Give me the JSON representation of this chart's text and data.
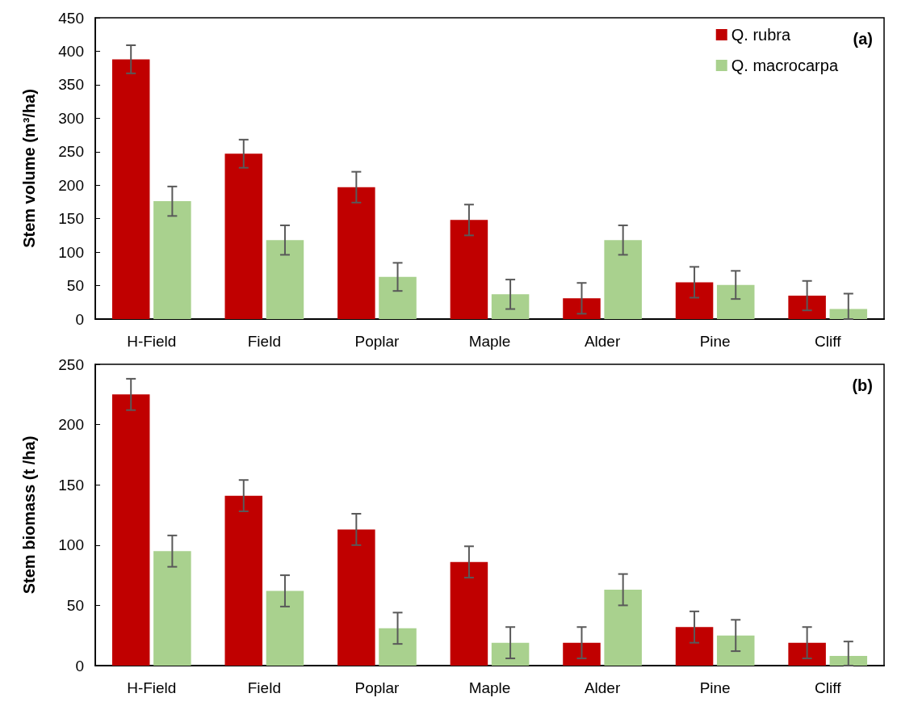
{
  "chart_data": [
    {
      "type": "bar",
      "ylabel": "Stem volume (m³/ha)",
      "categories": [
        "H-Field",
        "Field",
        "Poplar",
        "Maple",
        "Alder",
        "Pine",
        "Cliff"
      ],
      "ylim": [
        0,
        450
      ],
      "yticks": [
        0,
        50,
        100,
        150,
        200,
        250,
        300,
        350,
        400,
        450
      ],
      "grid": false,
      "legend": "top right",
      "annotations": [
        "(a)"
      ],
      "series": [
        {
          "name": "Q. rubra",
          "color": "#c00000",
          "values": [
            388,
            247,
            197,
            148,
            31,
            55,
            35
          ],
          "errors": [
            21,
            21,
            23,
            23,
            23,
            23,
            22
          ]
        },
        {
          "name": "Q. macrocarpa",
          "color": "#a9d18e",
          "values": [
            176,
            118,
            63,
            37,
            118,
            51,
            15
          ],
          "errors": [
            22,
            22,
            21,
            22,
            22,
            21,
            [
              0,
              38
            ]
          ]
        }
      ]
    },
    {
      "type": "bar",
      "ylabel": "Stem biomass (t /ha)",
      "categories": [
        "H-Field",
        "Field",
        "Poplar",
        "Maple",
        "Alder",
        "Pine",
        "Cliff"
      ],
      "ylim": [
        0,
        250
      ],
      "yticks": [
        0,
        50,
        100,
        150,
        200,
        250
      ],
      "grid": false,
      "legend": false,
      "annotations": [
        "(b)"
      ],
      "series": [
        {
          "color": "#c00000",
          "values": [
            225,
            141,
            113,
            86,
            19,
            32,
            19
          ],
          "errors": [
            13,
            13,
            13,
            13,
            13,
            13,
            13
          ]
        },
        {
          "color": "#a9d18e",
          "values": [
            95,
            62,
            31,
            19,
            63,
            25,
            8
          ],
          "errors": [
            13,
            13,
            13,
            13,
            13,
            13,
            [
              0,
              20
            ]
          ]
        }
      ]
    }
  ]
}
